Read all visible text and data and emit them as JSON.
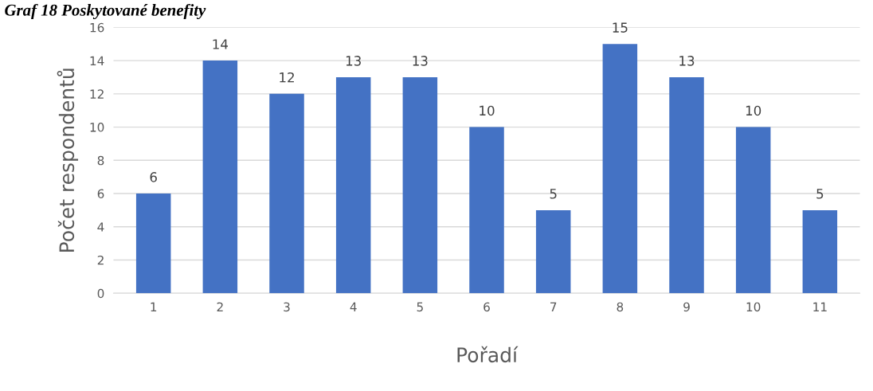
{
  "chart_data": {
    "type": "bar",
    "title": "Graf 18 Poskytované benefity",
    "xlabel": "Pořadí",
    "ylabel": "Počet respondentů",
    "categories": [
      "1",
      "2",
      "3",
      "4",
      "5",
      "6",
      "7",
      "8",
      "9",
      "10",
      "11"
    ],
    "values": [
      6,
      14,
      12,
      13,
      13,
      10,
      5,
      15,
      13,
      10,
      5
    ],
    "color": "#4472c4",
    "ylim": [
      0,
      16
    ],
    "yticks": [
      0,
      2,
      4,
      6,
      8,
      10,
      12,
      14,
      16
    ],
    "grid": "y",
    "data_labels": true
  }
}
